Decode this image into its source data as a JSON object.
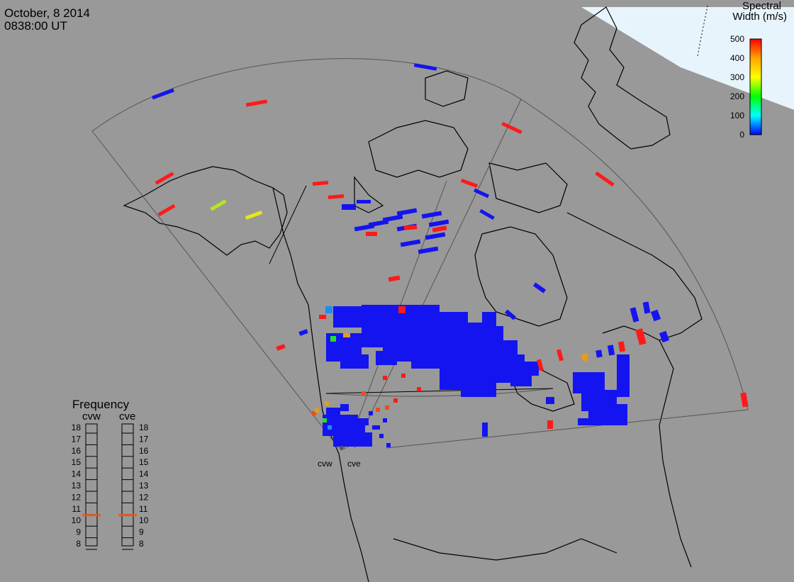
{
  "header": {
    "date": "October, 8 2014",
    "time": "0838:00 UT"
  },
  "colorbar": {
    "title_line1": "Spectral",
    "title_line2": "Width (m/s)",
    "ticks": [
      "500",
      "400",
      "300",
      "200",
      "100",
      "0"
    ],
    "colors": [
      "#ff0000",
      "#ffa500",
      "#ffff00",
      "#00ff00",
      "#00ffff",
      "#0000ff"
    ]
  },
  "frequency": {
    "title": "Frequency",
    "left_label": "cvw",
    "right_label": "cve",
    "ticks": [
      "18",
      "17",
      "16",
      "15",
      "14",
      "13",
      "12",
      "11",
      "10",
      "9",
      "8"
    ],
    "marker_value": 10.7,
    "marker_color": "#e65a1e"
  },
  "radars": {
    "west_label": "cvw",
    "east_label": "cve"
  },
  "colors": {
    "background": "#999999",
    "ocean_cap": "#e8f4fc",
    "coast": "#000000",
    "fov": "#555555",
    "low": "#1414f0",
    "high": "#ff1a1a"
  }
}
